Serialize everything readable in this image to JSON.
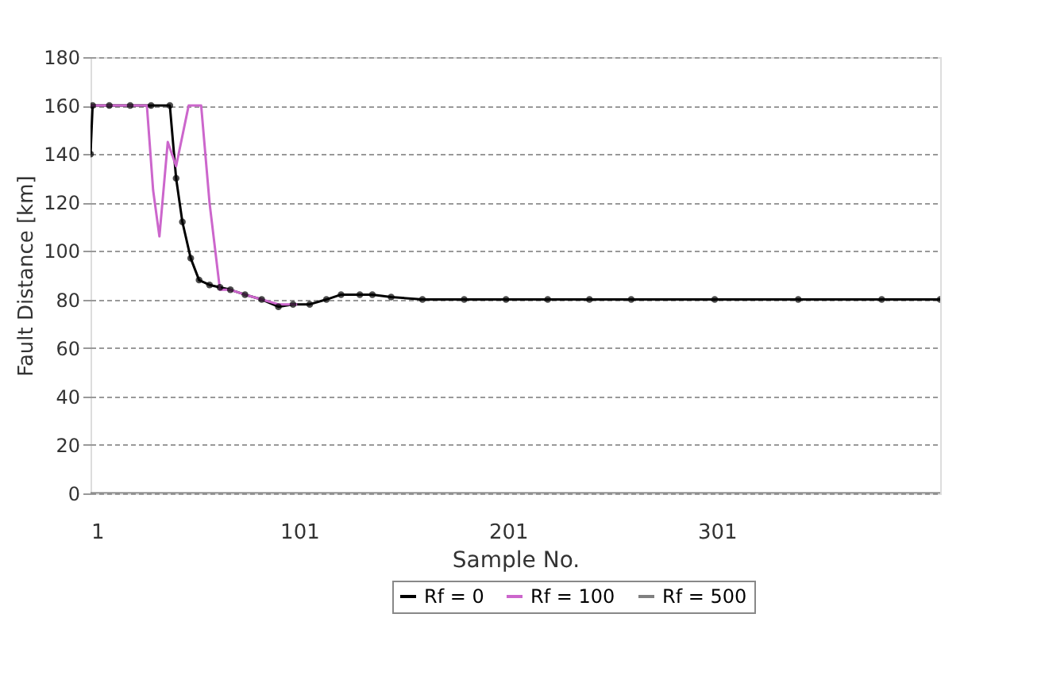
{
  "chart_data": {
    "type": "line",
    "xlabel": "Sample No.",
    "ylabel": "Fault Distance [km]",
    "xlim": [
      1,
      408
    ],
    "xticks": [
      1,
      101,
      201,
      301
    ],
    "ylim": [
      0,
      180
    ],
    "yticks": [
      0,
      20,
      40,
      60,
      80,
      100,
      120,
      140,
      160,
      180
    ],
    "grid": "y",
    "legend": "bottom",
    "series": [
      {
        "name": "Rf = 0",
        "color": "#000000",
        "marker": "circle",
        "x": [
          1,
          2,
          10,
          20,
          30,
          39,
          42,
          45,
          49,
          53,
          58,
          63,
          68,
          75,
          83,
          91,
          98,
          106,
          114,
          121,
          130,
          136,
          145,
          160,
          180,
          200,
          220,
          240,
          260,
          300,
          340,
          380,
          408
        ],
        "values": [
          140,
          160,
          160,
          160,
          160,
          160,
          130,
          112,
          97,
          88,
          86,
          85,
          84,
          82,
          80,
          77,
          78,
          78,
          80,
          82,
          82,
          82,
          81,
          80,
          80,
          80,
          80,
          80,
          80,
          80,
          80,
          80,
          80
        ]
      },
      {
        "name": "Rf = 100",
        "color": "#cc66cc",
        "marker": "none",
        "x": [
          1,
          10,
          20,
          28,
          31,
          34,
          38,
          42,
          48,
          54,
          58,
          63,
          68,
          75,
          83,
          91,
          100
        ],
        "values": [
          160,
          160,
          160,
          160,
          125,
          106,
          145,
          135,
          160,
          160,
          120,
          84,
          84,
          82,
          80,
          78,
          78
        ]
      },
      {
        "name": "Rf = 500",
        "color": "#808080",
        "marker": "none",
        "x": [
          1,
          100,
          200,
          300,
          408
        ],
        "values": [
          0,
          0,
          0,
          0,
          0
        ]
      }
    ]
  }
}
